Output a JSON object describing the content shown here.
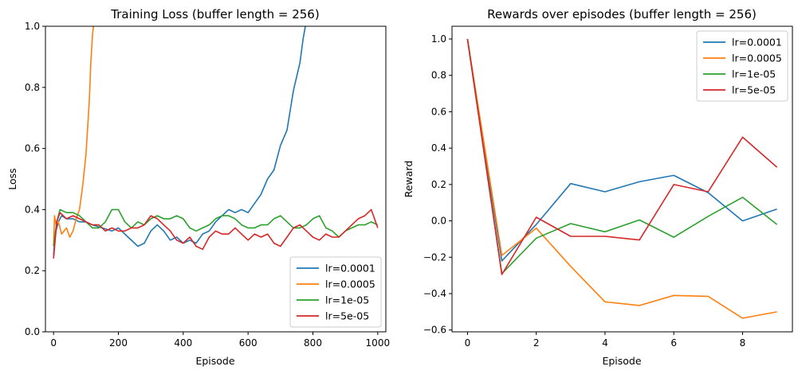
{
  "colors": {
    "lr=0.0001": "#1f77b4",
    "lr=0.0005": "#ff7f0e",
    "lr=1e-05": "#2ca02c",
    "lr=5e-05": "#d62728"
  },
  "chart_data": [
    {
      "type": "line",
      "title": "Training Loss (buffer length = 256)",
      "xlabel": "Episode",
      "ylabel": "Loss",
      "xlim": [
        -25,
        1025
      ],
      "ylim": [
        0.0,
        1.0
      ],
      "xticks": [
        0,
        200,
        400,
        600,
        800,
        1000
      ],
      "yticks": [
        0.0,
        0.2,
        0.4,
        0.6,
        0.8,
        1.0
      ],
      "xtick_labels": [
        "0",
        "200",
        "400",
        "600",
        "800",
        "1000"
      ],
      "ytick_labels": [
        "0.0",
        "0.2",
        "0.4",
        "0.6",
        "0.8",
        "1.0"
      ],
      "legend_position": "lower-right",
      "series": [
        {
          "name": "lr=0.0001",
          "x": [
            0,
            5,
            15,
            25,
            40,
            60,
            80,
            100,
            120,
            150,
            180,
            200,
            230,
            260,
            280,
            300,
            320,
            340,
            360,
            380,
            400,
            420,
            440,
            460,
            480,
            500,
            520,
            540,
            560,
            580,
            600,
            620,
            640,
            660,
            680,
            700,
            720,
            740,
            760,
            770,
            780
          ],
          "y": [
            0.25,
            0.32,
            0.36,
            0.38,
            0.37,
            0.37,
            0.36,
            0.36,
            0.35,
            0.34,
            0.33,
            0.34,
            0.31,
            0.28,
            0.29,
            0.33,
            0.35,
            0.33,
            0.3,
            0.31,
            0.29,
            0.3,
            0.29,
            0.32,
            0.33,
            0.36,
            0.38,
            0.4,
            0.39,
            0.4,
            0.39,
            0.42,
            0.45,
            0.5,
            0.53,
            0.61,
            0.66,
            0.79,
            0.88,
            0.96,
            1.02
          ]
        },
        {
          "name": "lr=0.0005",
          "x": [
            0,
            3,
            8,
            15,
            25,
            40,
            50,
            60,
            70,
            80,
            90,
            100,
            110,
            115,
            120,
            125
          ],
          "y": [
            0.28,
            0.38,
            0.35,
            0.36,
            0.32,
            0.34,
            0.31,
            0.33,
            0.37,
            0.4,
            0.48,
            0.58,
            0.75,
            0.88,
            0.97,
            1.02
          ]
        },
        {
          "name": "lr=1e-05",
          "x": [
            0,
            10,
            20,
            40,
            60,
            80,
            100,
            120,
            140,
            160,
            180,
            200,
            220,
            240,
            260,
            280,
            300,
            320,
            340,
            360,
            380,
            400,
            420,
            440,
            460,
            480,
            500,
            520,
            540,
            560,
            580,
            600,
            620,
            640,
            660,
            680,
            700,
            720,
            740,
            760,
            780,
            800,
            820,
            840,
            860,
            880,
            900,
            920,
            940,
            960,
            980,
            1000
          ],
          "y": [
            0.28,
            0.36,
            0.4,
            0.39,
            0.39,
            0.38,
            0.36,
            0.34,
            0.34,
            0.36,
            0.4,
            0.4,
            0.36,
            0.34,
            0.36,
            0.35,
            0.37,
            0.38,
            0.37,
            0.37,
            0.38,
            0.37,
            0.34,
            0.33,
            0.34,
            0.35,
            0.37,
            0.38,
            0.38,
            0.37,
            0.35,
            0.34,
            0.34,
            0.35,
            0.35,
            0.37,
            0.38,
            0.36,
            0.34,
            0.34,
            0.35,
            0.37,
            0.38,
            0.34,
            0.33,
            0.31,
            0.33,
            0.34,
            0.35,
            0.35,
            0.36,
            0.35
          ]
        },
        {
          "name": "lr=5e-05",
          "x": [
            0,
            5,
            10,
            20,
            40,
            60,
            80,
            100,
            120,
            140,
            160,
            180,
            200,
            220,
            240,
            260,
            280,
            300,
            320,
            340,
            360,
            380,
            400,
            420,
            440,
            460,
            480,
            500,
            520,
            540,
            560,
            580,
            600,
            620,
            640,
            660,
            680,
            700,
            720,
            740,
            760,
            780,
            800,
            820,
            840,
            860,
            880,
            900,
            920,
            940,
            960,
            980,
            990,
            1000
          ],
          "y": [
            0.24,
            0.3,
            0.36,
            0.39,
            0.37,
            0.38,
            0.37,
            0.36,
            0.35,
            0.35,
            0.33,
            0.34,
            0.33,
            0.33,
            0.34,
            0.34,
            0.35,
            0.38,
            0.37,
            0.35,
            0.33,
            0.3,
            0.29,
            0.31,
            0.28,
            0.27,
            0.31,
            0.33,
            0.32,
            0.32,
            0.34,
            0.32,
            0.3,
            0.32,
            0.31,
            0.32,
            0.29,
            0.28,
            0.31,
            0.34,
            0.35,
            0.33,
            0.31,
            0.3,
            0.32,
            0.31,
            0.31,
            0.33,
            0.35,
            0.37,
            0.38,
            0.4,
            0.37,
            0.34
          ]
        }
      ]
    },
    {
      "type": "line",
      "title": "Rewards over episodes (buffer length = 256)",
      "xlabel": "Episode",
      "ylabel": "Reward",
      "xlim": [
        -0.45,
        9.45
      ],
      "ylim": [
        -0.61,
        1.07
      ],
      "xticks": [
        0,
        2,
        4,
        6,
        8
      ],
      "yticks": [
        -0.6,
        -0.4,
        -0.2,
        0.0,
        0.2,
        0.4,
        0.6,
        0.8,
        1.0
      ],
      "xtick_labels": [
        "0",
        "2",
        "4",
        "6",
        "8"
      ],
      "ytick_labels": [
        "−0.6",
        "−0.4",
        "−0.2",
        "0.0",
        "0.2",
        "0.4",
        "0.6",
        "0.8",
        "1.0"
      ],
      "legend_position": "upper-right",
      "series": [
        {
          "name": "lr=0.0001",
          "x": [
            0,
            1,
            2,
            3,
            4,
            5,
            6,
            7,
            8,
            9
          ],
          "y": [
            1.0,
            -0.22,
            -0.02,
            0.205,
            0.16,
            0.215,
            0.25,
            0.155,
            0.0,
            0.065
          ]
        },
        {
          "name": "lr=0.0005",
          "x": [
            0,
            1,
            2,
            3,
            4,
            5,
            6,
            7,
            8,
            9
          ],
          "y": [
            1.0,
            -0.19,
            -0.04,
            -0.25,
            -0.445,
            -0.465,
            -0.41,
            -0.415,
            -0.535,
            -0.5
          ]
        },
        {
          "name": "lr=1e-05",
          "x": [
            0,
            1,
            2,
            3,
            4,
            5,
            6,
            7,
            8,
            9
          ],
          "y": [
            1.0,
            -0.29,
            -0.095,
            -0.015,
            -0.06,
            0.005,
            -0.09,
            0.025,
            0.13,
            -0.02
          ]
        },
        {
          "name": "lr=5e-05",
          "x": [
            0,
            1,
            2,
            3,
            4,
            5,
            6,
            7,
            8,
            9
          ],
          "y": [
            1.0,
            -0.295,
            0.02,
            -0.085,
            -0.085,
            -0.105,
            0.2,
            0.16,
            0.46,
            0.295
          ]
        }
      ]
    }
  ]
}
